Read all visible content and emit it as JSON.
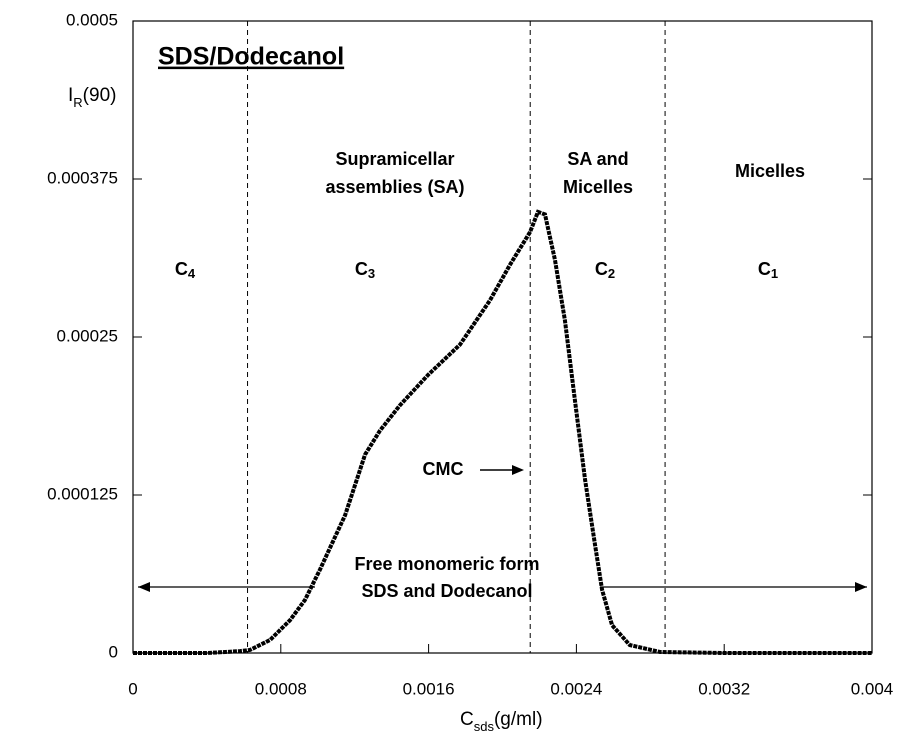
{
  "chart_data": {
    "type": "scatter",
    "title": "SDS/Dodecanol",
    "y_label": {
      "main": "I",
      "sub": "R",
      "tail": "(90)"
    },
    "x_label": {
      "main": "C",
      "sub": "sds",
      "tail": "(g/ml)"
    },
    "x": [
      0,
      0.0002,
      0.0004,
      0.0005,
      0.00058,
      0.000633,
      0.000742,
      0.00085,
      0.000931,
      0.001012,
      0.001148,
      0.001256,
      0.001337,
      0.001445,
      0.001597,
      0.00177,
      0.001932,
      0.00204,
      0.002149,
      0.002192,
      0.00223,
      0.002284,
      0.002338,
      0.002392,
      0.002447,
      0.002501,
      0.002539,
      0.002593,
      0.002689,
      0.002852,
      0.0032,
      0.0036,
      0.004
    ],
    "values": [
      0,
      0,
      0,
      8e-07,
      1.5e-06,
      2.4e-06,
      1.03e-05,
      2.6e-05,
      4.2e-05,
      6.6e-05,
      0.000109,
      0.000157,
      0.000176,
      0.000196,
      0.00022,
      0.000244,
      0.000279,
      0.000307,
      0.000333,
      0.000349,
      0.000347,
      0.000311,
      0.000263,
      0.0002,
      0.000137,
      8.54e-05,
      5e-05,
      2.2e-05,
      6.3e-06,
      8e-07,
      0,
      0,
      0
    ],
    "color": "#000000",
    "xlim": [
      0,
      0.004
    ],
    "ylim": [
      0,
      0.0005
    ],
    "xticks": [
      0,
      0.0008,
      0.0016,
      0.0024,
      0.0032,
      0.004
    ],
    "yticks": [
      0,
      0.000125,
      0.00025,
      0.000375,
      0.0005
    ],
    "vlines": [
      0.00062,
      0.00215,
      0.00288
    ],
    "annotations": [
      "Supramicellar",
      "assemblies (SA)",
      "SA and",
      "Micelles",
      "Micelles",
      "CMC",
      "Free monomeric form",
      "SDS and Dodecanol"
    ],
    "region_labels": [
      {
        "main": "C",
        "sub": "4"
      },
      {
        "main": "C",
        "sub": "3"
      },
      {
        "main": "C",
        "sub": "2"
      },
      {
        "main": "C",
        "sub": "1"
      }
    ]
  }
}
